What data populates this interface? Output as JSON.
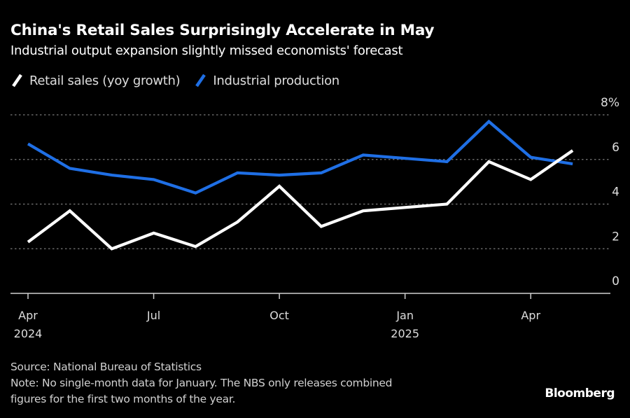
{
  "header": {
    "title": "China's Retail Sales Surprisingly Accelerate in May",
    "subtitle": "Industrial output expansion slightly missed economists' forecast"
  },
  "legend": [
    {
      "label": "Retail sales (yoy growth)",
      "color": "#ffffff",
      "icon": "line-swatch-icon"
    },
    {
      "label": "Industrial production",
      "color": "#1f6fe5",
      "icon": "line-swatch-icon"
    }
  ],
  "footer": {
    "source": "Source: National Bureau of Statistics",
    "note_line1": "Note: No single-month data for January. The NBS only releases combined",
    "note_line2": "figures for the first two months of the year.",
    "brand": "Bloomberg"
  },
  "chart_data": {
    "type": "line",
    "title": "China's Retail Sales Surprisingly Accelerate in May",
    "subtitle": "Industrial output expansion slightly missed economists' forecast",
    "xlabel": "",
    "ylabel": "",
    "x": [
      "2024-04",
      "2024-05",
      "2024-06",
      "2024-07",
      "2024-08",
      "2024-09",
      "2024-10",
      "2024-11",
      "2024-12",
      "2025-02",
      "2025-03",
      "2025-04",
      "2025-05"
    ],
    "x_month_index": [
      0,
      1,
      2,
      3,
      4,
      5,
      6,
      7,
      8,
      10,
      11,
      12,
      13
    ],
    "x_range_months": [
      -0.4,
      13.9
    ],
    "x_ticks": [
      {
        "month_index": 0,
        "label": "Apr",
        "sublabel": "2024"
      },
      {
        "month_index": 3,
        "label": "Jul",
        "sublabel": ""
      },
      {
        "month_index": 6,
        "label": "Oct",
        "sublabel": ""
      },
      {
        "month_index": 9,
        "label": "Jan",
        "sublabel": "2025"
      },
      {
        "month_index": 12,
        "label": "Apr",
        "sublabel": ""
      }
    ],
    "series": [
      {
        "name": "Retail sales (yoy growth)",
        "color": "#ffffff",
        "values": [
          2.3,
          3.7,
          2.0,
          2.7,
          2.1,
          3.2,
          4.8,
          3.0,
          3.7,
          4.0,
          5.9,
          5.1,
          6.4
        ]
      },
      {
        "name": "Industrial production",
        "color": "#1f6fe5",
        "values": [
          6.7,
          5.6,
          5.3,
          5.1,
          4.5,
          5.4,
          5.3,
          5.4,
          6.2,
          5.9,
          7.7,
          6.1,
          5.8
        ]
      }
    ],
    "ylim": [
      0,
      8
    ],
    "y_ticks": [
      {
        "value": 0,
        "label": "0"
      },
      {
        "value": 2,
        "label": "2"
      },
      {
        "value": 4,
        "label": "4"
      },
      {
        "value": 6,
        "label": "6"
      },
      {
        "value": 8,
        "label": "8%"
      }
    ],
    "y_axis_side": "right",
    "grid": true,
    "legend_position": "top-left"
  }
}
